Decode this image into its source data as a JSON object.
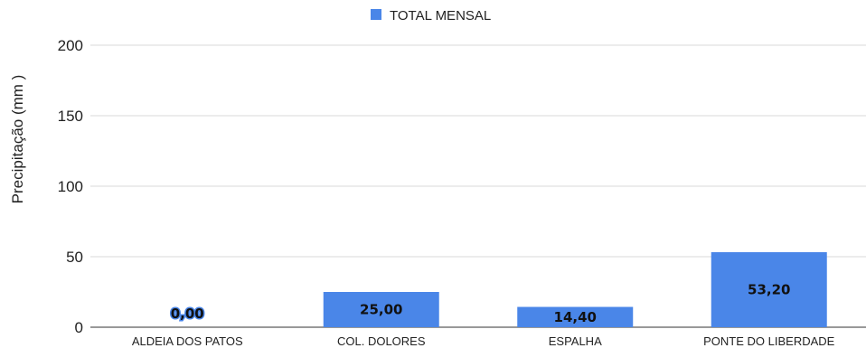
{
  "chart_data": {
    "type": "bar",
    "categories": [
      "ALDEIA DOS PATOS",
      "COL. DOLORES",
      "ESPALHA",
      "PONTE DO LIBERDADE"
    ],
    "series": [
      {
        "name": "TOTAL MENSAL",
        "values": [
          0.0,
          25.0,
          14.4,
          53.2
        ],
        "data_labels": [
          "0,00",
          "25,00",
          "14,40",
          "53,20"
        ],
        "color": "#4a86e8"
      }
    ],
    "title": "",
    "xlabel": "",
    "ylabel": "Precipitação (mm )",
    "ylim": [
      0,
      200
    ],
    "yticks": [
      0,
      50,
      100,
      150,
      200
    ],
    "grid": true,
    "legend": "top-center"
  }
}
